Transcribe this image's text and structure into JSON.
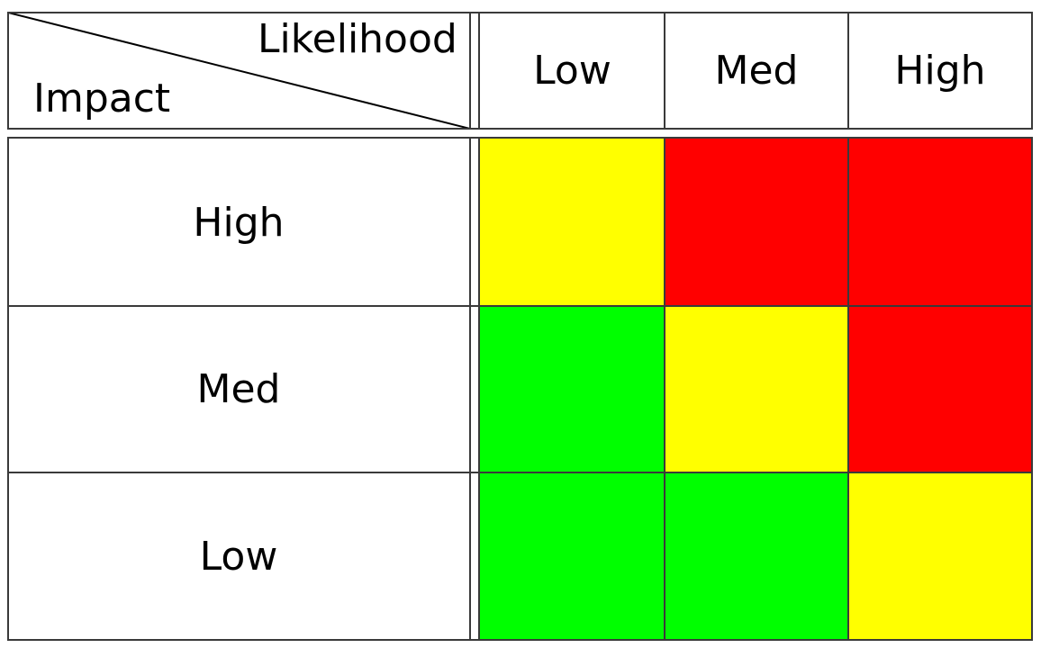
{
  "header": {
    "column_axis_label": "Likelihood",
    "row_axis_label": "Impact",
    "columns": [
      "Low",
      "Med",
      "High"
    ]
  },
  "rows": [
    {
      "label": "High",
      "cells": [
        "yellow",
        "red",
        "red"
      ]
    },
    {
      "label": "Med",
      "cells": [
        "green",
        "yellow",
        "red"
      ]
    },
    {
      "label": "Low",
      "cells": [
        "green",
        "green",
        "yellow"
      ]
    }
  ],
  "colors": {
    "green": "#00ff00",
    "yellow": "#ffff00",
    "red": "#ff0000",
    "border": "#3a3a3a"
  }
}
